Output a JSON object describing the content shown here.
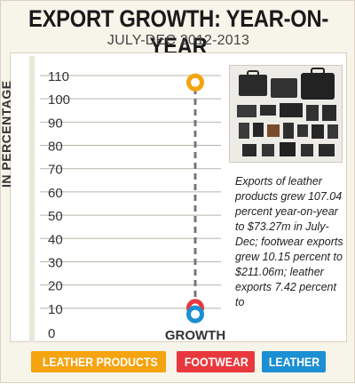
{
  "header": {
    "title": "EXPORT GROWTH: YEAR-ON-YEAR",
    "subtitle": "JULY-DEC 2012-2013"
  },
  "caption": "Exports of leather products grew 107.04 percent year-on-year to $73.27m in July-Dec; footwear exports grew 10.15 percent to $211.06m; leather exports 7.42 percent to",
  "photo_icon": "leather-goods-photo",
  "colors": {
    "leather_products": "#f5a30f",
    "footwear": "#e8383d",
    "leather": "#1b8fd3",
    "axis_line": "#777777",
    "grid": "#b9b5aa"
  },
  "chart_data": {
    "type": "scatter",
    "title": "EXPORT GROWTH: YEAR-ON-YEAR",
    "subtitle": "JULY-DEC 2012-2013",
    "ylabel": "IN PERCENTAGE",
    "xlabel": "",
    "categories": [
      "GROWTH"
    ],
    "ylim": [
      0,
      110
    ],
    "yticks": [
      0,
      10,
      20,
      30,
      40,
      50,
      60,
      70,
      80,
      90,
      100,
      110
    ],
    "grid": true,
    "legend_position": "bottom",
    "series": [
      {
        "name": "LEATHER PRODUCTS",
        "values": [
          107.04
        ],
        "color": "#f5a30f"
      },
      {
        "name": "FOOTWEAR",
        "values": [
          10.15
        ],
        "color": "#e8383d"
      },
      {
        "name": "LEATHER",
        "values": [
          7.42
        ],
        "color": "#1b8fd3"
      }
    ]
  }
}
